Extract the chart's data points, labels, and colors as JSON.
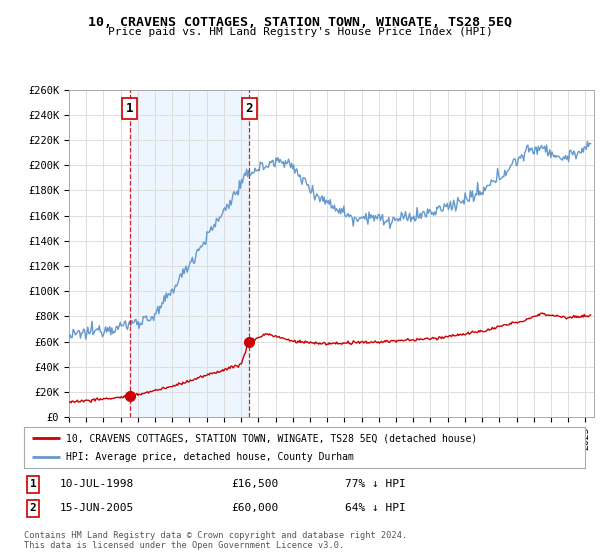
{
  "title": "10, CRAVENS COTTAGES, STATION TOWN, WINGATE, TS28 5EQ",
  "subtitle": "Price paid vs. HM Land Registry's House Price Index (HPI)",
  "ylim": [
    0,
    260000
  ],
  "yticks": [
    0,
    20000,
    40000,
    60000,
    80000,
    100000,
    120000,
    140000,
    160000,
    180000,
    200000,
    220000,
    240000,
    260000
  ],
  "ytick_labels": [
    "£0",
    "£20K",
    "£40K",
    "£60K",
    "£80K",
    "£100K",
    "£120K",
    "£140K",
    "£160K",
    "£180K",
    "£200K",
    "£220K",
    "£240K",
    "£260K"
  ],
  "xlim_start": 1995.0,
  "xlim_end": 2025.5,
  "sale1_x": 1998.53,
  "sale1_y": 16500,
  "sale2_x": 2005.46,
  "sale2_y": 60000,
  "red_color": "#cc0000",
  "blue_color": "#6699cc",
  "blue_fill": "#ddeeff",
  "grid_color": "#dddddd",
  "background_color": "#ffffff",
  "legend_text1": "10, CRAVENS COTTAGES, STATION TOWN, WINGATE, TS28 5EQ (detached house)",
  "legend_text2": "HPI: Average price, detached house, County Durham",
  "footnote": "Contains HM Land Registry data © Crown copyright and database right 2024.\nThis data is licensed under the Open Government Licence v3.0."
}
